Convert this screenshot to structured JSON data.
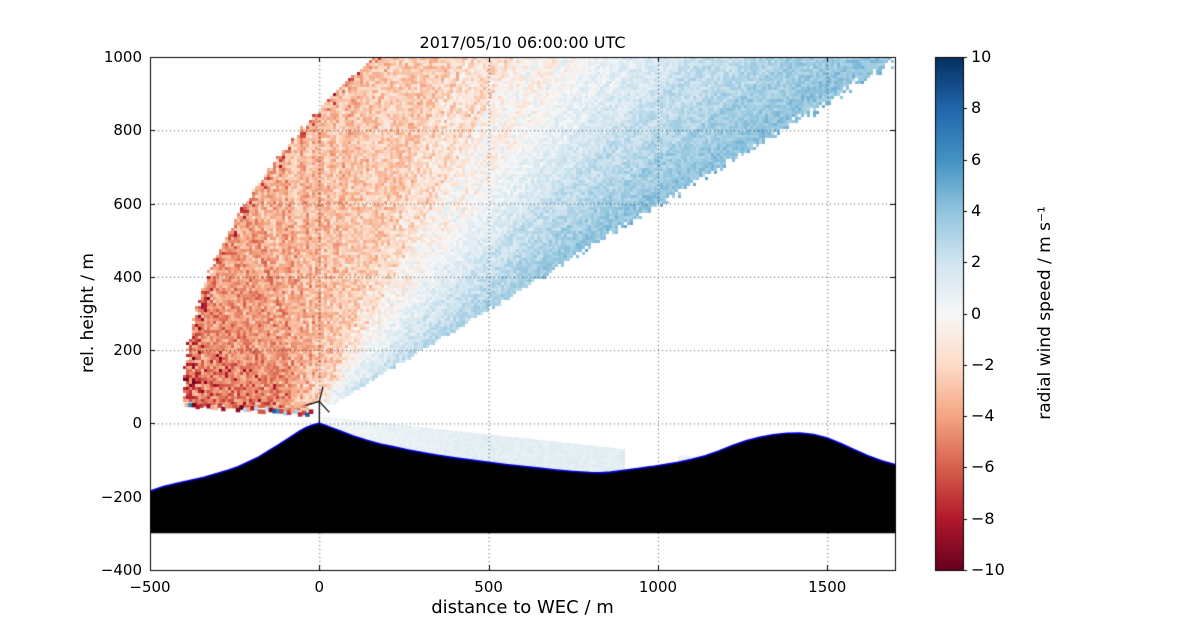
{
  "chart_data": {
    "type": "heatmap",
    "subtype": "lidar-rhi-scan",
    "title": "2017/05/10 06:00:00 UTC",
    "xlabel": "distance to WEC / m",
    "ylabel": "rel. height / m",
    "xlim": [
      -500,
      1700
    ],
    "ylim": [
      -400,
      1000
    ],
    "x_ticks": [
      -500,
      0,
      500,
      1000,
      1500
    ],
    "y_ticks": [
      -400,
      -200,
      0,
      200,
      400,
      600,
      800,
      1000
    ],
    "grid": true,
    "grid_style": "dotted",
    "colorbar": {
      "label": "radial wind speed / m s⁻¹",
      "ticks": [
        10,
        8,
        6,
        4,
        2,
        0,
        -2,
        -4,
        -6,
        -8,
        -10
      ],
      "vmin": -10,
      "vmax": 10,
      "colormap": "RdBu",
      "colormap_stops": [
        [
          0.0,
          "#67001f"
        ],
        [
          0.1,
          "#b2182b"
        ],
        [
          0.2,
          "#d6604d"
        ],
        [
          0.3,
          "#f4a582"
        ],
        [
          0.4,
          "#fddbc7"
        ],
        [
          0.5,
          "#f7f7f7"
        ],
        [
          0.6,
          "#d1e5f0"
        ],
        [
          0.7,
          "#92c5de"
        ],
        [
          0.8,
          "#4393c3"
        ],
        [
          0.9,
          "#2166ac"
        ],
        [
          1.0,
          "#053061"
        ]
      ]
    },
    "field_model": {
      "description": "Fan-shaped RHI lidar scan centred on the wind turbine (WEC). Radial wind speed is negative (red, about -2 to -6 m/s) over most of the left/upper fan and positive (blue, about +1 to +4 m/s) in the upper-right sector. A thin pale strip of weak positive values follows the terrain in the valley right of the WEC, and a strip of saturated red/blue hard-target returns follows the hillside left of the WEC.",
      "apex": [
        0,
        28
      ],
      "theta_min_deg": 29.5,
      "theta_profile": {
        "theta_deg": [
          29,
          40,
          47,
          52,
          58,
          70,
          90,
          120,
          176
        ],
        "value": [
          4.2,
          2.4,
          0.9,
          0,
          -1.0,
          -2.2,
          -3.2,
          -4.2,
          -4.6
        ]
      },
      "left_boundary_coeffs": [
        -395,
        -0.095,
        0.00065
      ],
      "lower_left_edge": {
        "y0": 28,
        "slope": -0.07
      },
      "ground_strip": {
        "x_ranges": [
          [
            8,
            900
          ],
          [
            1060,
            1205
          ]
        ],
        "top_edge": {
          "y0": 20,
          "slope": -0.1
        },
        "base_value": 0.9
      },
      "hard_target_strip": {
        "from": [
          -392,
          52
        ],
        "to": [
          -25,
          28
        ]
      },
      "noise_seed": 42
    },
    "terrain_base": -300,
    "terrain_profile": [
      [
        -500,
        -185
      ],
      [
        -460,
        -172
      ],
      [
        -420,
        -163
      ],
      [
        -380,
        -155
      ],
      [
        -340,
        -147
      ],
      [
        -300,
        -136
      ],
      [
        -270,
        -128
      ],
      [
        -240,
        -118
      ],
      [
        -210,
        -105
      ],
      [
        -180,
        -92
      ],
      [
        -150,
        -75
      ],
      [
        -120,
        -58
      ],
      [
        -90,
        -40
      ],
      [
        -60,
        -22
      ],
      [
        -40,
        -12
      ],
      [
        -20,
        -4
      ],
      [
        0,
        0
      ],
      [
        15,
        -4
      ],
      [
        30,
        -10
      ],
      [
        60,
        -20
      ],
      [
        100,
        -34
      ],
      [
        140,
        -46
      ],
      [
        180,
        -56
      ],
      [
        220,
        -64
      ],
      [
        260,
        -72
      ],
      [
        300,
        -79
      ],
      [
        350,
        -87
      ],
      [
        400,
        -94
      ],
      [
        450,
        -100
      ],
      [
        500,
        -106
      ],
      [
        550,
        -112
      ],
      [
        600,
        -117
      ],
      [
        650,
        -122
      ],
      [
        700,
        -127
      ],
      [
        750,
        -131
      ],
      [
        800,
        -134
      ],
      [
        830,
        -135
      ],
      [
        860,
        -133
      ],
      [
        900,
        -128
      ],
      [
        940,
        -123
      ],
      [
        980,
        -118
      ],
      [
        1020,
        -112
      ],
      [
        1060,
        -106
      ],
      [
        1100,
        -98
      ],
      [
        1140,
        -88
      ],
      [
        1180,
        -75
      ],
      [
        1220,
        -60
      ],
      [
        1260,
        -47
      ],
      [
        1300,
        -38
      ],
      [
        1340,
        -31
      ],
      [
        1380,
        -27
      ],
      [
        1420,
        -26
      ],
      [
        1460,
        -30
      ],
      [
        1500,
        -40
      ],
      [
        1540,
        -55
      ],
      [
        1580,
        -72
      ],
      [
        1620,
        -88
      ],
      [
        1660,
        -102
      ],
      [
        1700,
        -112
      ]
    ],
    "wec": {
      "x": 0,
      "base_height": 0,
      "hub_height": 60,
      "rotor_radius": 42
    }
  }
}
